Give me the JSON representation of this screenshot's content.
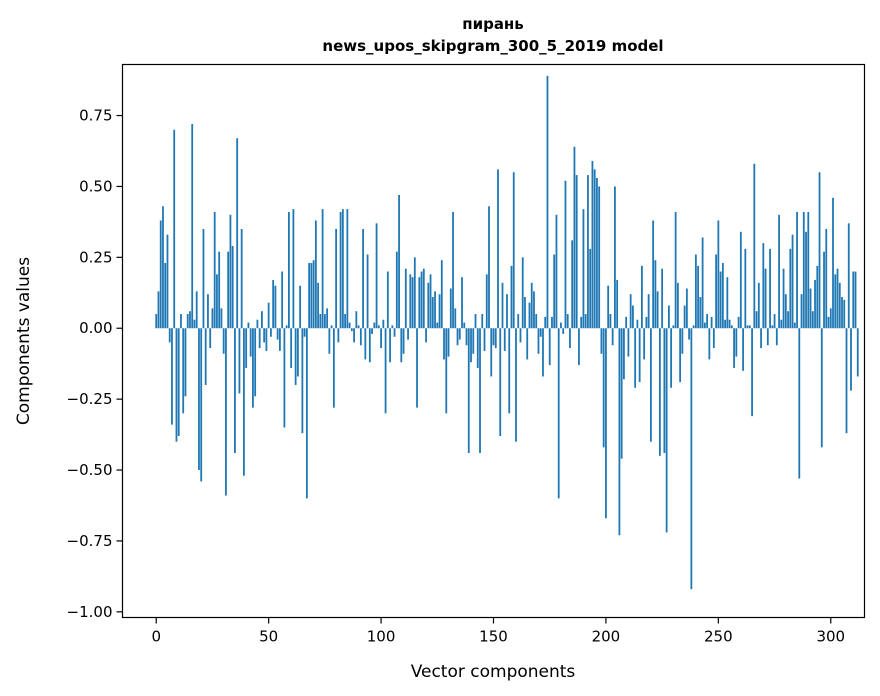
{
  "title": {
    "line1": "пирань",
    "line2": "news_upos_skipgram_300_5_2019 model"
  },
  "chart_data": {
    "type": "bar",
    "title": "пирань news_upos_skipgram_300_5_2019 model",
    "xlabel": "Vector components",
    "ylabel": "Components values",
    "xlim": [
      -15,
      315
    ],
    "ylim": [
      -1.02,
      0.93
    ],
    "x_ticks": [
      0,
      50,
      100,
      150,
      200,
      250,
      300
    ],
    "x_tick_labels": [
      "0",
      "50",
      "100",
      "150",
      "200",
      "250",
      "300"
    ],
    "y_ticks": [
      -1.0,
      -0.75,
      -0.5,
      -0.25,
      0.0,
      0.25,
      0.5,
      0.75
    ],
    "y_tick_labels": [
      "−1.00",
      "−0.75",
      "−0.50",
      "−0.25",
      "0.00",
      "0.25",
      "0.50",
      "0.75"
    ],
    "bar_color": "#1f77b4",
    "bar_width": 0.8,
    "values": [
      0.05,
      0.13,
      0.38,
      0.43,
      0.23,
      0.33,
      -0.05,
      -0.34,
      0.7,
      -0.4,
      -0.38,
      0.05,
      -0.3,
      -0.24,
      0.05,
      0.06,
      0.72,
      0.03,
      0.13,
      -0.5,
      -0.54,
      0.35,
      -0.2,
      0.12,
      -0.07,
      0.07,
      0.41,
      0.19,
      0.27,
      0.07,
      -0.09,
      -0.59,
      0.27,
      0.4,
      0.29,
      -0.44,
      0.67,
      -0.23,
      0.35,
      -0.52,
      -0.14,
      0.02,
      -0.1,
      -0.28,
      -0.24,
      0.03,
      -0.07,
      0.06,
      -0.05,
      -0.08,
      0.09,
      -0.03,
      0.17,
      0.15,
      -0.04,
      -0.08,
      0.2,
      -0.35,
      0.01,
      0.41,
      -0.14,
      0.42,
      -0.2,
      -0.17,
      0.15,
      -0.37,
      -0.03,
      -0.6,
      0.23,
      0.23,
      0.24,
      0.38,
      0.16,
      0.05,
      0.42,
      0.05,
      0.07,
      -0.09,
      0.01,
      -0.28,
      0.35,
      -0.05,
      0.41,
      0.42,
      0.05,
      0.42,
      0.02,
      -0.01,
      -0.05,
      0.06,
      0.01,
      -0.06,
      0.35,
      -0.11,
      0.26,
      -0.12,
      -0.02,
      0.02,
      0.37,
      0.01,
      -0.07,
      0.03,
      -0.3,
      0.2,
      -0.12,
      0.01,
      -0.03,
      0.27,
      0.47,
      -0.12,
      -0.09,
      0.21,
      -0.04,
      0.19,
      0.18,
      0.25,
      -0.28,
      0.18,
      0.2,
      0.21,
      -0.05,
      0.16,
      0.19,
      0.11,
      0.13,
      0.02,
      0.12,
      0.24,
      -0.11,
      -0.3,
      -0.1,
      0.14,
      0.41,
      0.07,
      -0.06,
      -0.04,
      0.18,
      0.02,
      -0.06,
      -0.44,
      -0.12,
      -0.09,
      0.05,
      -0.14,
      -0.44,
      0.05,
      -0.08,
      0.19,
      0.43,
      -0.17,
      -0.06,
      -0.07,
      0.56,
      -0.38,
      0.16,
      -0.08,
      0.12,
      -0.3,
      0.22,
      0.55,
      -0.4,
      0.05,
      -0.05,
      0.25,
      0.11,
      -0.11,
      0.09,
      0.16,
      0.13,
      0.05,
      -0.09,
      -0.03,
      -0.17,
      0.04,
      0.89,
      -0.13,
      0.04,
      0.26,
      0.4,
      -0.6,
      0.02,
      -0.02,
      0.52,
      0.05,
      -0.07,
      0.31,
      0.64,
      0.54,
      -0.13,
      0.04,
      0.42,
      0.05,
      0.54,
      0.28,
      0.59,
      0.56,
      0.53,
      0.5,
      -0.09,
      -0.42,
      -0.67,
      0.15,
      0.05,
      -0.06,
      0.5,
      0.17,
      -0.73,
      -0.46,
      -0.18,
      0.04,
      -0.1,
      0.12,
      0.08,
      -0.21,
      0.03,
      -0.19,
      0.22,
      -0.11,
      0.04,
      0.12,
      -0.4,
      0.38,
      0.24,
      0.13,
      -0.45,
      0.21,
      -0.44,
      -0.72,
      0.08,
      -0.21,
      0.01,
      0.41,
      0.16,
      -0.19,
      -0.09,
      0.08,
      0.14,
      -0.04,
      -0.92,
      0.01,
      0.26,
      0.22,
      0.11,
      0.32,
      0.02,
      0.05,
      -0.11,
      0.04,
      -0.07,
      0.26,
      0.38,
      0.2,
      0.23,
      0.03,
      0.18,
      0.03,
      0.01,
      -0.14,
      -0.1,
      0.04,
      0.34,
      -0.15,
      0.28,
      0.01,
      0.01,
      -0.31,
      0.58,
      0.06,
      0.16,
      -0.07,
      0.3,
      0.21,
      -0.06,
      0.28,
      0.01,
      0.05,
      -0.06,
      0.4,
      0.03,
      0.21,
      0.12,
      0.06,
      0.28,
      0.33,
      0.02,
      0.41,
      -0.53,
      0.12,
      0.41,
      0.34,
      0.41,
      0.14,
      0.06,
      0.17,
      0.22,
      0.55,
      -0.42,
      0.27,
      0.35,
      0.04,
      0.07,
      0.46,
      0.19,
      0.21,
      0.16,
      0.11,
      0.1,
      -0.37,
      0.37,
      -0.22,
      0.2,
      0.2,
      -0.17
    ]
  }
}
